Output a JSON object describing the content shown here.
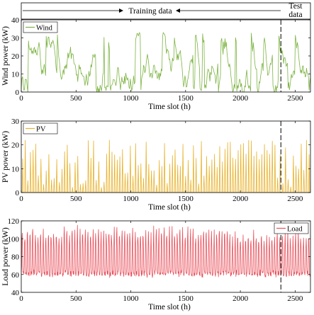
{
  "header": {
    "training_label": "Training data",
    "test_label_line1": "Test",
    "test_label_line2": "data"
  },
  "split_x": 2370,
  "chart_data": [
    {
      "type": "line",
      "title": "",
      "xlabel": "Time slot (h)",
      "ylabel": "Wind power (kW)",
      "xlim": [
        0,
        2640
      ],
      "ylim": [
        0,
        40
      ],
      "x_ticks": [
        0,
        500,
        1000,
        1500,
        2000,
        2500
      ],
      "y_ticks": [
        0,
        10,
        20,
        30,
        40
      ],
      "legend": "top-left",
      "series": [
        {
          "name": "Wind",
          "color": "#7cb342",
          "pattern": "smooth-random",
          "range": [
            0,
            33
          ],
          "mean": 12,
          "x_start": 0,
          "x_end": 2640
        }
      ]
    },
    {
      "type": "line",
      "title": "",
      "xlabel": "Time slot (h)",
      "ylabel": "PV power (kW)",
      "xlim": [
        0,
        2640
      ],
      "ylim": [
        0,
        30
      ],
      "x_ticks": [
        0,
        500,
        1000,
        1500,
        2000,
        2500
      ],
      "y_ticks": [
        0,
        10,
        20,
        30
      ],
      "legend": "top-left",
      "series": [
        {
          "name": "PV",
          "color": "#e8b12a",
          "pattern": "daily-pulses",
          "period_h": 24,
          "peak_range": [
            2,
            22
          ],
          "x_start": 0,
          "x_end": 2640
        }
      ]
    },
    {
      "type": "line",
      "title": "",
      "xlabel": "Time slot (h)",
      "ylabel": "Load power (kW)",
      "xlim": [
        0,
        2640
      ],
      "ylim": [
        40,
        120
      ],
      "x_ticks": [
        0,
        500,
        1000,
        1500,
        2000,
        2500
      ],
      "y_ticks": [
        40,
        60,
        80,
        100,
        120
      ],
      "legend": "top-right",
      "series": [
        {
          "name": "Load",
          "color": "#e8505b",
          "pattern": "daily-oscillation",
          "period_h": 24,
          "range": [
            55,
            120
          ],
          "x_start": 0,
          "x_end": 2640
        }
      ]
    }
  ]
}
